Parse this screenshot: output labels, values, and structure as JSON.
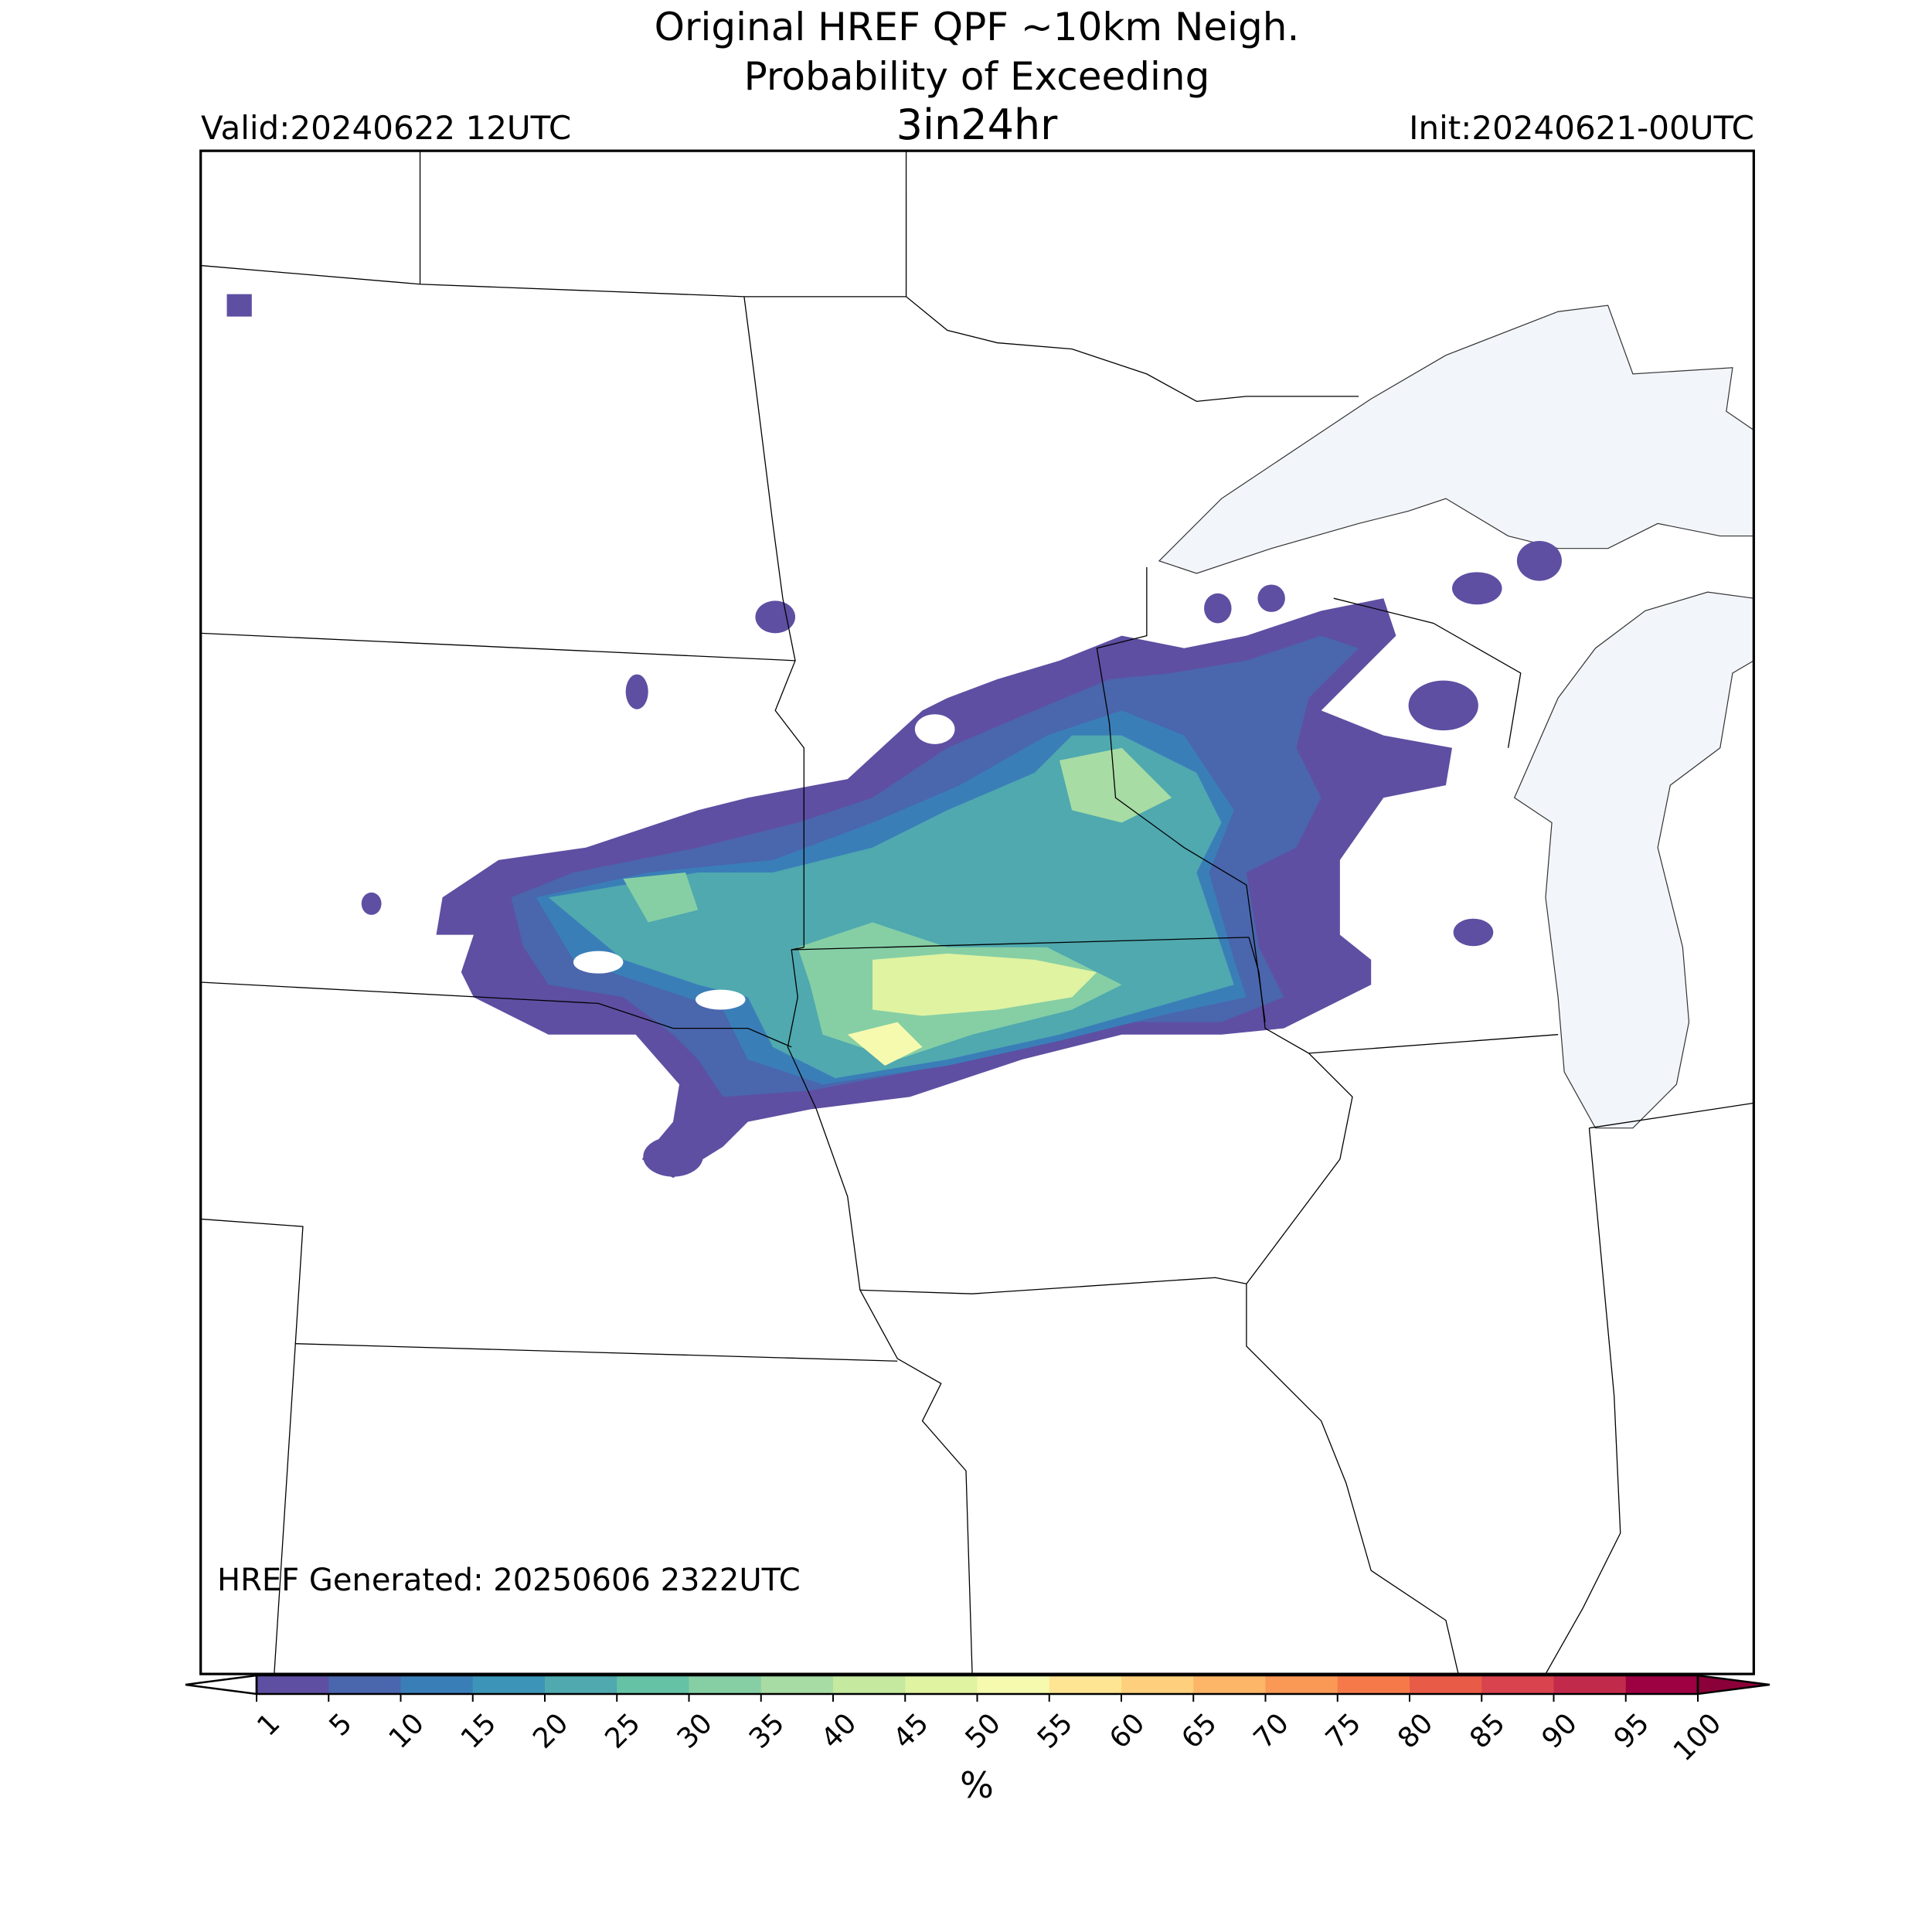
{
  "header": {
    "title": [
      "Original HREF QPF ~10km Neigh.",
      "Probability of Exceeding"
    ],
    "threshold": "3in24hr",
    "valid": "Valid:20240622 12UTC",
    "init": "Init:20240621-00UTC"
  },
  "map": {
    "footnote": "HREF Generated: 20250606 2322UTC"
  },
  "colorbar": {
    "ticks": [
      1,
      5,
      10,
      15,
      20,
      25,
      30,
      35,
      40,
      45,
      50,
      55,
      60,
      65,
      70,
      75,
      80,
      85,
      90,
      95,
      100
    ],
    "colors": [
      "#5e4fa2",
      "#4a66ad",
      "#3a7eb8",
      "#3c95b8",
      "#4fa9af",
      "#66c2a5",
      "#86cfa5",
      "#a7dca4",
      "#c4e99f",
      "#e0f3a1",
      "#f6faaf",
      "#fee593",
      "#fed07e",
      "#fdb567",
      "#fa9856",
      "#f67a49",
      "#e85c47",
      "#d8434e",
      "#c22a4b",
      "#9e0142"
    ],
    "extend_colors": [
      "#ffffff",
      "#8b0039"
    ],
    "label": "%"
  }
}
